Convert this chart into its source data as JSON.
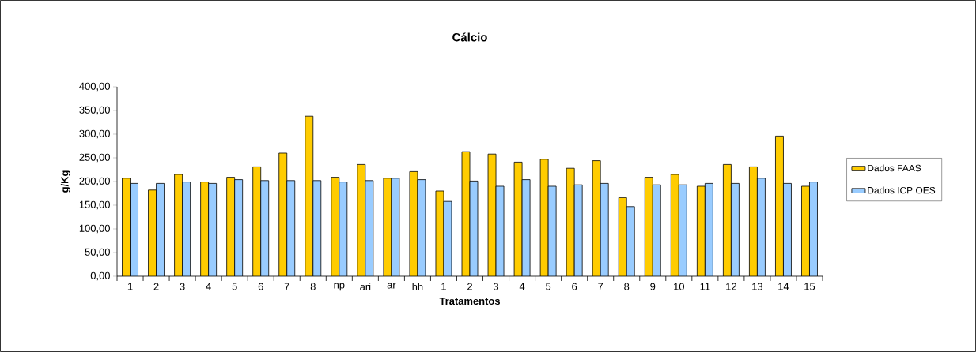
{
  "chart_data": {
    "type": "bar",
    "title": "Cálcio",
    "xlabel": "Tratamentos",
    "ylabel": "g/Kg",
    "categories": [
      "1",
      "2",
      "3",
      "4",
      "5",
      "6",
      "7",
      "8",
      "np",
      "ari",
      "ar",
      "hh",
      "1",
      "2",
      "3",
      "4",
      "5",
      "6",
      "7",
      "8",
      "9",
      "10",
      "11",
      "12",
      "13",
      "14",
      "15"
    ],
    "series": [
      {
        "name": "Dados FAAS",
        "color": "#ffcc00",
        "values": [
          207,
          182,
          215,
          199,
          209,
          231,
          260,
          338,
          209,
          236,
          207,
          221,
          180,
          263,
          258,
          241,
          247,
          228,
          244,
          166,
          209,
          215,
          190,
          236,
          231,
          296,
          190
        ]
      },
      {
        "name": "Dados ICP OES",
        "color": "#99ccff",
        "values": [
          196,
          196,
          199,
          196,
          204,
          202,
          202,
          202,
          199,
          202,
          207,
          204,
          158,
          201,
          190,
          204,
          190,
          193,
          196,
          147,
          193,
          193,
          196,
          196,
          207,
          196,
          199
        ]
      }
    ],
    "ylim": [
      0,
      400
    ],
    "yticks": [
      {
        "value": 0,
        "label": "0,00"
      },
      {
        "value": 50,
        "label": "50,00"
      },
      {
        "value": 100,
        "label": "100,00"
      },
      {
        "value": 150,
        "label": "150,00"
      },
      {
        "value": 200,
        "label": "200,00"
      },
      {
        "value": 250,
        "label": "250,00"
      },
      {
        "value": 300,
        "label": "300,00"
      },
      {
        "value": 350,
        "label": "350,00"
      },
      {
        "value": 400,
        "label": "400,00"
      }
    ],
    "grid": false,
    "legend": "right"
  }
}
